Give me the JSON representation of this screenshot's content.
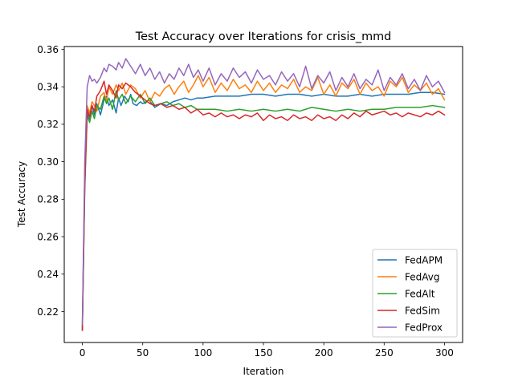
{
  "chart_data": {
    "type": "line",
    "title": "Test Accuracy over Iterations for crisis_mmd",
    "xlabel": "Iteration",
    "ylabel": "Test Accuracy",
    "xlim": [
      -15,
      315
    ],
    "ylim": [
      0.2035,
      0.3615
    ],
    "xticks": [
      0,
      50,
      100,
      150,
      200,
      250,
      300
    ],
    "yticks": [
      0.22,
      0.24,
      0.26,
      0.28,
      0.3,
      0.32,
      0.34,
      0.36
    ],
    "xtick_labels": [
      "0",
      "50",
      "100",
      "150",
      "200",
      "250",
      "300"
    ],
    "ytick_labels": [
      "0.22",
      "0.24",
      "0.26",
      "0.28",
      "0.30",
      "0.32",
      "0.34",
      "0.36"
    ],
    "grid": false,
    "legend_position": "lower-right",
    "series": [
      {
        "name": "FedAPM",
        "color": "#1f77b4",
        "x": [
          0,
          2,
          4,
          6,
          8,
          10,
          12,
          15,
          18,
          20,
          22,
          25,
          28,
          30,
          32,
          35,
          38,
          40,
          42,
          45,
          48,
          50,
          55,
          60,
          65,
          70,
          75,
          80,
          85,
          90,
          95,
          100,
          110,
          120,
          130,
          140,
          150,
          160,
          170,
          180,
          190,
          200,
          210,
          220,
          230,
          240,
          250,
          260,
          270,
          280,
          290,
          300
        ],
        "y": [
          0.211,
          0.29,
          0.326,
          0.322,
          0.33,
          0.325,
          0.331,
          0.325,
          0.333,
          0.335,
          0.33,
          0.333,
          0.326,
          0.334,
          0.33,
          0.335,
          0.332,
          0.336,
          0.331,
          0.33,
          0.332,
          0.331,
          0.333,
          0.329,
          0.331,
          0.33,
          0.332,
          0.333,
          0.334,
          0.333,
          0.334,
          0.334,
          0.335,
          0.335,
          0.335,
          0.336,
          0.336,
          0.335,
          0.336,
          0.336,
          0.335,
          0.336,
          0.335,
          0.335,
          0.336,
          0.335,
          0.336,
          0.336,
          0.336,
          0.337,
          0.337,
          0.336
        ]
      },
      {
        "name": "FedAvg",
        "color": "#ff7f0e",
        "x": [
          0,
          2,
          4,
          6,
          8,
          10,
          12,
          15,
          18,
          20,
          22,
          25,
          28,
          30,
          33,
          36,
          40,
          44,
          48,
          52,
          56,
          60,
          64,
          68,
          72,
          76,
          80,
          84,
          88,
          92,
          96,
          100,
          105,
          110,
          115,
          120,
          125,
          130,
          135,
          140,
          145,
          150,
          155,
          160,
          165,
          170,
          175,
          180,
          185,
          190,
          195,
          200,
          205,
          210,
          215,
          220,
          225,
          230,
          235,
          240,
          245,
          250,
          255,
          260,
          265,
          270,
          275,
          280,
          285,
          290,
          295,
          300
        ],
        "y": [
          0.214,
          0.293,
          0.33,
          0.326,
          0.332,
          0.33,
          0.327,
          0.335,
          0.337,
          0.332,
          0.34,
          0.336,
          0.341,
          0.338,
          0.342,
          0.336,
          0.341,
          0.339,
          0.334,
          0.338,
          0.332,
          0.337,
          0.335,
          0.339,
          0.341,
          0.336,
          0.34,
          0.343,
          0.337,
          0.341,
          0.346,
          0.34,
          0.345,
          0.337,
          0.342,
          0.338,
          0.344,
          0.339,
          0.341,
          0.337,
          0.343,
          0.338,
          0.342,
          0.337,
          0.341,
          0.339,
          0.344,
          0.337,
          0.34,
          0.338,
          0.345,
          0.336,
          0.341,
          0.335,
          0.342,
          0.339,
          0.344,
          0.336,
          0.342,
          0.338,
          0.34,
          0.335,
          0.343,
          0.34,
          0.345,
          0.337,
          0.341,
          0.338,
          0.342,
          0.336,
          0.339,
          0.333
        ]
      },
      {
        "name": "FedAlt",
        "color": "#2ca02c",
        "x": [
          0,
          2,
          4,
          6,
          8,
          10,
          12,
          15,
          18,
          20,
          22,
          25,
          28,
          30,
          33,
          36,
          40,
          44,
          48,
          52,
          56,
          60,
          65,
          70,
          75,
          80,
          85,
          90,
          95,
          100,
          110,
          120,
          130,
          140,
          150,
          160,
          170,
          180,
          190,
          200,
          210,
          220,
          230,
          240,
          250,
          260,
          270,
          280,
          290,
          300
        ],
        "y": [
          0.21,
          0.285,
          0.325,
          0.321,
          0.327,
          0.323,
          0.33,
          0.328,
          0.335,
          0.331,
          0.334,
          0.328,
          0.338,
          0.333,
          0.336,
          0.331,
          0.335,
          0.332,
          0.336,
          0.331,
          0.334,
          0.33,
          0.331,
          0.332,
          0.33,
          0.331,
          0.329,
          0.33,
          0.328,
          0.328,
          0.328,
          0.327,
          0.328,
          0.327,
          0.328,
          0.327,
          0.328,
          0.327,
          0.329,
          0.328,
          0.327,
          0.328,
          0.327,
          0.328,
          0.328,
          0.329,
          0.329,
          0.329,
          0.33,
          0.329
        ]
      },
      {
        "name": "FedSim",
        "color": "#d62728",
        "x": [
          0,
          2,
          4,
          6,
          8,
          10,
          12,
          15,
          18,
          20,
          22,
          25,
          28,
          30,
          33,
          36,
          40,
          44,
          48,
          52,
          56,
          60,
          65,
          70,
          75,
          80,
          85,
          90,
          95,
          100,
          105,
          110,
          115,
          120,
          125,
          130,
          135,
          140,
          145,
          150,
          155,
          160,
          165,
          170,
          175,
          180,
          185,
          190,
          195,
          200,
          205,
          210,
          215,
          220,
          225,
          230,
          235,
          240,
          245,
          250,
          255,
          260,
          265,
          270,
          275,
          280,
          285,
          290,
          295,
          300
        ],
        "y": [
          0.21,
          0.288,
          0.328,
          0.324,
          0.33,
          0.327,
          0.335,
          0.338,
          0.343,
          0.336,
          0.341,
          0.338,
          0.334,
          0.341,
          0.339,
          0.342,
          0.34,
          0.337,
          0.335,
          0.333,
          0.331,
          0.33,
          0.331,
          0.329,
          0.33,
          0.328,
          0.329,
          0.326,
          0.328,
          0.325,
          0.326,
          0.324,
          0.326,
          0.324,
          0.325,
          0.323,
          0.325,
          0.324,
          0.326,
          0.322,
          0.325,
          0.323,
          0.324,
          0.322,
          0.325,
          0.323,
          0.324,
          0.322,
          0.325,
          0.323,
          0.324,
          0.322,
          0.325,
          0.323,
          0.326,
          0.324,
          0.327,
          0.325,
          0.326,
          0.327,
          0.325,
          0.326,
          0.324,
          0.326,
          0.325,
          0.324,
          0.326,
          0.325,
          0.327,
          0.325
        ]
      },
      {
        "name": "FedProx",
        "color": "#9467bd",
        "x": [
          0,
          2,
          4,
          6,
          8,
          10,
          12,
          15,
          18,
          20,
          22,
          25,
          28,
          30,
          33,
          36,
          40,
          44,
          48,
          52,
          56,
          60,
          64,
          68,
          72,
          76,
          80,
          84,
          88,
          92,
          96,
          100,
          105,
          110,
          115,
          120,
          125,
          130,
          135,
          140,
          145,
          150,
          155,
          160,
          165,
          170,
          175,
          180,
          185,
          190,
          195,
          200,
          205,
          210,
          215,
          220,
          225,
          230,
          235,
          240,
          245,
          250,
          255,
          260,
          265,
          270,
          275,
          280,
          285,
          290,
          295,
          300
        ],
        "y": [
          0.213,
          0.3,
          0.34,
          0.346,
          0.343,
          0.344,
          0.342,
          0.345,
          0.35,
          0.348,
          0.352,
          0.351,
          0.349,
          0.353,
          0.35,
          0.355,
          0.351,
          0.347,
          0.352,
          0.346,
          0.35,
          0.344,
          0.348,
          0.342,
          0.347,
          0.344,
          0.35,
          0.346,
          0.352,
          0.345,
          0.349,
          0.343,
          0.35,
          0.341,
          0.347,
          0.343,
          0.35,
          0.345,
          0.348,
          0.342,
          0.349,
          0.344,
          0.346,
          0.341,
          0.348,
          0.343,
          0.347,
          0.34,
          0.351,
          0.339,
          0.346,
          0.342,
          0.348,
          0.338,
          0.345,
          0.34,
          0.347,
          0.339,
          0.344,
          0.341,
          0.349,
          0.338,
          0.345,
          0.341,
          0.347,
          0.339,
          0.344,
          0.338,
          0.346,
          0.34,
          0.343,
          0.337
        ]
      }
    ]
  }
}
